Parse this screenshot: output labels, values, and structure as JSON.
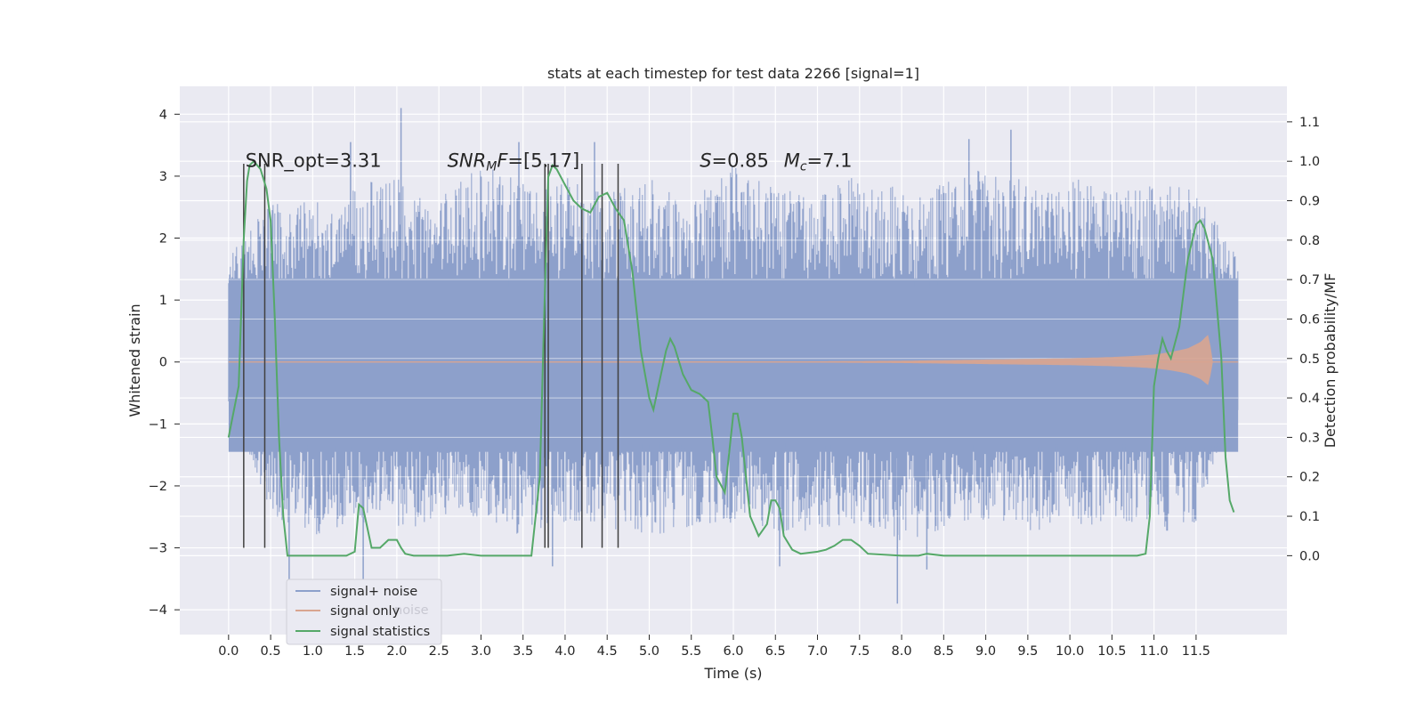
{
  "chart_data": {
    "type": "line",
    "title": "stats at each timestep for test data 2266 [signal=1]",
    "xlabel": "Time (s)",
    "ylabel": "Whitened strain",
    "ylabel_right": "Detection probability/MF",
    "xlim": [
      -0.58,
      12.58
    ],
    "ylim": [
      -4.4,
      4.45
    ],
    "ylim_right": [
      -0.2,
      1.19
    ],
    "x_ticks": [
      0.0,
      0.5,
      1.0,
      1.5,
      2.0,
      2.5,
      3.0,
      3.5,
      4.0,
      4.5,
      5.0,
      5.5,
      6.0,
      6.5,
      7.0,
      7.5,
      8.0,
      8.5,
      9.0,
      9.5,
      10.0,
      10.5,
      11.0,
      11.5
    ],
    "x_tick_labels": [
      "0.0",
      "0.5",
      "1.0",
      "1.5",
      "2.0",
      "2.5",
      "3.0",
      "3.5",
      "4.0",
      "4.5",
      "5.0",
      "5.5",
      "6.0",
      "6.5",
      "7.0",
      "7.5",
      "8.0",
      "8.5",
      "9.0",
      "9.5",
      "10.0",
      "10.5",
      "11.0",
      "11.5"
    ],
    "y_ticks_left": [
      -4,
      -3,
      -2,
      -1,
      0,
      1,
      2,
      3,
      4
    ],
    "y_tick_labels_left": [
      "−4",
      "−3",
      "−2",
      "−1",
      "0",
      "1",
      "2",
      "3",
      "4"
    ],
    "y_ticks_right": [
      0.0,
      0.1,
      0.2,
      0.3,
      0.4,
      0.5,
      0.6,
      0.7,
      0.8,
      0.9,
      1.0,
      1.1
    ],
    "y_tick_labels_right": [
      "0.0",
      "0.1",
      "0.2",
      "0.3",
      "0.4",
      "0.5",
      "0.6",
      "0.7",
      "0.8",
      "0.9",
      "1.0",
      "1.1"
    ],
    "grid": true,
    "legend_placement": "lower-left",
    "series": [
      {
        "name": "signal+ noise",
        "color": "#8da0cb",
        "axis": "left",
        "t_range": [
          0.0,
          12.0
        ],
        "envelope_t": [
          0.0,
          0.5,
          1.0,
          1.5,
          2.0,
          2.5,
          3.0,
          3.5,
          4.0,
          4.5,
          5.0,
          5.5,
          6.0,
          6.5,
          7.0,
          7.5,
          8.0,
          8.5,
          9.0,
          9.5,
          10.0,
          10.5,
          11.0,
          11.5,
          12.0
        ],
        "envelope_upper": [
          1.7,
          2.6,
          2.6,
          2.9,
          3.0,
          2.7,
          3.2,
          2.9,
          3.0,
          2.7,
          3.0,
          2.6,
          3.2,
          2.8,
          2.9,
          3.0,
          2.8,
          2.9,
          3.3,
          2.9,
          3.0,
          2.8,
          2.9,
          2.8,
          1.7
        ],
        "envelope_lower": [
          -0.5,
          -2.5,
          -2.8,
          -2.6,
          -2.7,
          -2.6,
          -2.6,
          -2.8,
          -2.6,
          -2.7,
          -2.8,
          -2.7,
          -2.6,
          -2.8,
          -2.7,
          -2.6,
          -2.9,
          -2.7,
          -2.6,
          -2.8,
          -2.6,
          -2.7,
          -2.8,
          -2.6,
          -0.6
        ],
        "spikes": [
          [
            2.05,
            4.1
          ],
          [
            0.72,
            -3.55
          ],
          [
            3.85,
            -3.3
          ],
          [
            7.95,
            -3.9
          ],
          [
            8.3,
            -3.35
          ],
          [
            9.3,
            3.75
          ],
          [
            8.8,
            3.6
          ],
          [
            6.55,
            -3.3
          ],
          [
            4.35,
            3.55
          ],
          [
            3.45,
            3.55
          ],
          [
            1.6,
            -3.55
          ],
          [
            1.45,
            3.55
          ]
        ]
      },
      {
        "name": "signal only",
        "color": "#d9a590",
        "axis": "left",
        "envelope_t": [
          0.0,
          7.0,
          8.0,
          9.0,
          9.5,
          10.0,
          10.5,
          10.8,
          11.0,
          11.2,
          11.4,
          11.55,
          11.65,
          11.7
        ],
        "envelope_amp": [
          0.005,
          0.01,
          0.02,
          0.04,
          0.05,
          0.06,
          0.08,
          0.1,
          0.12,
          0.16,
          0.22,
          0.32,
          0.45,
          0.0
        ]
      },
      {
        "name": "signal statistics",
        "color": "#55a868",
        "axis": "right",
        "x": [
          0.0,
          0.12,
          0.18,
          0.22,
          0.25,
          0.3,
          0.38,
          0.45,
          0.5,
          0.55,
          0.6,
          0.65,
          0.7,
          0.8,
          1.0,
          1.2,
          1.4,
          1.5,
          1.55,
          1.6,
          1.7,
          1.8,
          1.9,
          2.0,
          2.05,
          2.1,
          2.2,
          2.4,
          2.6,
          2.8,
          3.0,
          3.2,
          3.4,
          3.6,
          3.7,
          3.75,
          3.8,
          3.85,
          3.9,
          4.0,
          4.1,
          4.2,
          4.3,
          4.4,
          4.5,
          4.6,
          4.7,
          4.8,
          4.9,
          5.0,
          5.05,
          5.1,
          5.2,
          5.25,
          5.3,
          5.4,
          5.5,
          5.6,
          5.7,
          5.75,
          5.8,
          5.9,
          6.0,
          6.05,
          6.1,
          6.2,
          6.3,
          6.4,
          6.45,
          6.5,
          6.55,
          6.6,
          6.7,
          6.8,
          7.0,
          7.1,
          7.2,
          7.3,
          7.4,
          7.5,
          7.6,
          8.0,
          8.2,
          8.3,
          8.5,
          9.0,
          9.5,
          10.0,
          10.5,
          10.8,
          10.9,
          10.95,
          11.0,
          11.05,
          11.1,
          11.15,
          11.2,
          11.3,
          11.4,
          11.5,
          11.55,
          11.6,
          11.7,
          11.8,
          11.85,
          11.9,
          11.95
        ],
        "values": [
          0.3,
          0.43,
          0.8,
          0.95,
          0.99,
          1.0,
          0.98,
          0.93,
          0.85,
          0.6,
          0.3,
          0.1,
          0.0,
          0.0,
          0.0,
          0.0,
          0.0,
          0.01,
          0.13,
          0.12,
          0.02,
          0.02,
          0.04,
          0.04,
          0.02,
          0.005,
          0.0,
          0.0,
          0.0,
          0.005,
          0.0,
          0.0,
          0.0,
          0.0,
          0.2,
          0.6,
          0.96,
          0.99,
          0.98,
          0.94,
          0.9,
          0.88,
          0.87,
          0.91,
          0.92,
          0.88,
          0.85,
          0.72,
          0.52,
          0.4,
          0.37,
          0.42,
          0.52,
          0.55,
          0.53,
          0.46,
          0.42,
          0.41,
          0.39,
          0.3,
          0.2,
          0.16,
          0.36,
          0.36,
          0.3,
          0.1,
          0.05,
          0.08,
          0.14,
          0.14,
          0.12,
          0.05,
          0.015,
          0.005,
          0.01,
          0.015,
          0.025,
          0.04,
          0.04,
          0.025,
          0.005,
          0.0,
          0.0,
          0.005,
          0.0,
          0.0,
          0.0,
          0.0,
          0.0,
          0.0,
          0.005,
          0.1,
          0.43,
          0.5,
          0.55,
          0.52,
          0.5,
          0.58,
          0.75,
          0.84,
          0.85,
          0.83,
          0.75,
          0.5,
          0.25,
          0.14,
          0.11
        ]
      }
    ],
    "vlines": {
      "color": "#404040",
      "x": [
        0.18,
        0.43,
        3.76,
        3.8,
        4.2,
        4.44,
        4.63
      ],
      "y_range": [
        -3.0,
        3.2
      ]
    },
    "annotations": [
      {
        "id": "snr-opt",
        "text": "SNR_opt=3.31",
        "x": 0.2,
        "y": 3.15
      },
      {
        "id": "snr-mf",
        "text": "SNR_MF=[5.17]",
        "x": 2.6,
        "y": 3.15
      },
      {
        "id": "stat-s",
        "text": "S=0.85",
        "x": 5.6,
        "y": 3.15
      },
      {
        "id": "mass",
        "text": "M_c=7.1",
        "x": 6.6,
        "y": 3.15
      }
    ],
    "legend_ghost_text": "noise"
  }
}
